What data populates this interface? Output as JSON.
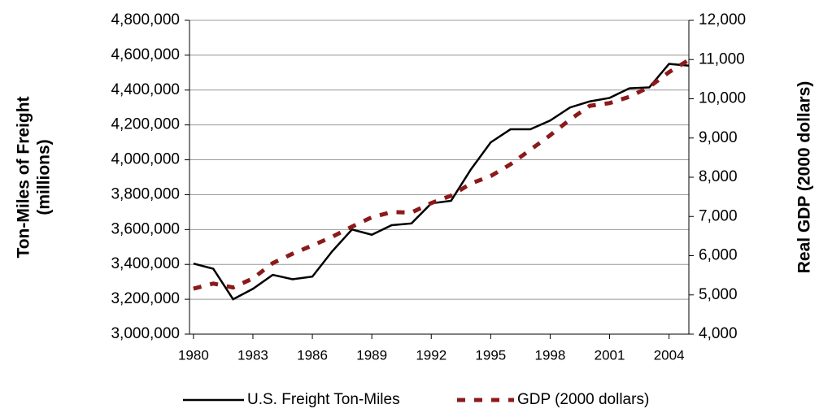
{
  "chart_data": {
    "type": "line",
    "y_label": [
      "Ton-Miles of Freight",
      "(millions)"
    ],
    "y2_label": "Real GDP (2000 dollars)",
    "x": [
      1980,
      1981,
      1982,
      1983,
      1984,
      1985,
      1986,
      1987,
      1988,
      1989,
      1990,
      1991,
      1992,
      1993,
      1994,
      1995,
      1996,
      1997,
      1998,
      1999,
      2000,
      2001,
      2002,
      2003,
      2004,
      2005
    ],
    "series": [
      {
        "name": "U.S. Freight Ton-Miles",
        "color": "#000000",
        "dashed": false,
        "values": [
          3405000,
          3375000,
          3200000,
          3260000,
          3340000,
          3315000,
          3330000,
          3475000,
          3600000,
          3570000,
          3625000,
          3635000,
          3750000,
          3765000,
          3945000,
          4100000,
          4175000,
          4175000,
          4225000,
          4300000,
          4335000,
          4355000,
          4410000,
          4415000,
          4550000,
          4540000
        ]
      },
      {
        "name": "GDP (2000 dollars)",
        "color": "#8b1a1a",
        "dashed": true,
        "axis": "y2",
        "values": [
          5160,
          5290,
          5190,
          5420,
          5810,
          6050,
          6260,
          6480,
          6740,
          6980,
          7110,
          7100,
          7340,
          7530,
          7840,
          8030,
          8330,
          8700,
          9070,
          9470,
          9820,
          9890,
          10050,
          10300,
          10680,
          10990
        ]
      }
    ],
    "xlim": [
      1979.8,
      2005
    ],
    "xticks": [
      1980,
      1983,
      1986,
      1989,
      1992,
      1995,
      1998,
      2001,
      2004
    ],
    "ylim": [
      3000000,
      4800000
    ],
    "yticks": [
      {
        "value": 3000000,
        "label": "3,000,000"
      },
      {
        "value": 3200000,
        "label": "3,200,000"
      },
      {
        "value": 3400000,
        "label": "3,400,000"
      },
      {
        "value": 3600000,
        "label": "3,600,000"
      },
      {
        "value": 3800000,
        "label": "3,800,000"
      },
      {
        "value": 4000000,
        "label": "4,000,000"
      },
      {
        "value": 4200000,
        "label": "4,200,000"
      },
      {
        "value": 4400000,
        "label": "4,400,000"
      },
      {
        "value": 4600000,
        "label": "4,600,000"
      },
      {
        "value": 4800000,
        "label": "4,800,000"
      }
    ],
    "y2lim": [
      4000,
      12000
    ],
    "y2ticks": [
      {
        "value": 4000,
        "label": "4,000"
      },
      {
        "value": 5000,
        "label": "5,000"
      },
      {
        "value": 6000,
        "label": "6,000"
      },
      {
        "value": 7000,
        "label": "7,000"
      },
      {
        "value": 8000,
        "label": "8,000"
      },
      {
        "value": 9000,
        "label": "9,000"
      },
      {
        "value": 10000,
        "label": "10,000"
      },
      {
        "value": 11000,
        "label": "11,000"
      },
      {
        "value": 12000,
        "label": "12,000"
      }
    ],
    "grid": true,
    "legend": "bottom"
  }
}
